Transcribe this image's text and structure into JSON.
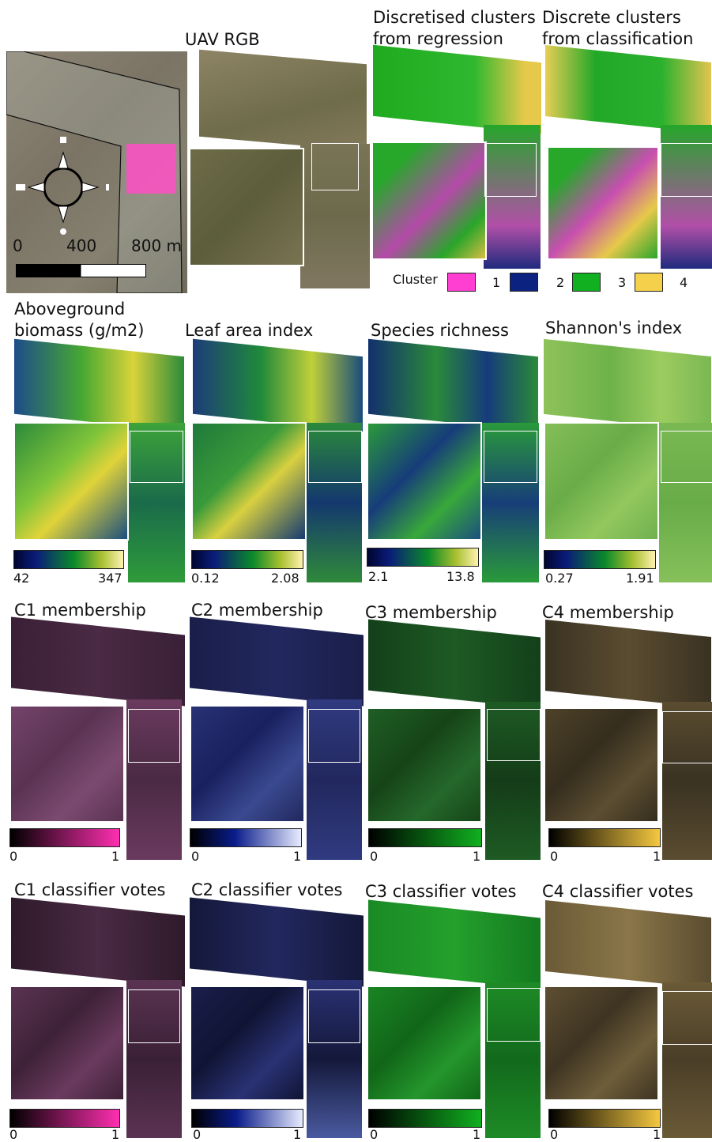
{
  "overview": {
    "scale_labels": [
      "0",
      "400",
      "800 m"
    ]
  },
  "panels": {
    "uav": "UAV RGB",
    "disc_reg": [
      "Discretised clusters",
      "from regression"
    ],
    "disc_cls": [
      "Discrete clusters",
      "from classification"
    ],
    "agb": [
      "Aboveground",
      "biomass (g/m2)"
    ],
    "lai": "Leaf area index",
    "richness": "Species richness",
    "shannon": "Shannon's index",
    "c1m": "C1 membership",
    "c2m": "C2 membership",
    "c3m": "C3 membership",
    "c4m": "C4 membership",
    "c1v": "C1 classifier votes",
    "c2v": "C2 classifier votes",
    "c3v": "C3 classifier votes",
    "c4v": "C4 classifier votes"
  },
  "legend": {
    "title": "Cluster",
    "items": [
      {
        "label": "1",
        "color": "#ff3fd2"
      },
      {
        "label": "2",
        "color": "#0b2280"
      },
      {
        "label": "3",
        "color": "#10b020"
      },
      {
        "label": "4",
        "color": "#f5d04a"
      }
    ]
  },
  "colorbars": {
    "agb": {
      "min": "42",
      "max": "347"
    },
    "lai": {
      "min": "0.12",
      "max": "2.08"
    },
    "richness": {
      "min": "2.1",
      "max": "13.8"
    },
    "shannon": {
      "min": "0.27",
      "max": "1.91"
    },
    "c1m": {
      "min": "0",
      "max": "1"
    },
    "c2m": {
      "min": "0",
      "max": "1"
    },
    "c3m": {
      "min": "0",
      "max": "1"
    },
    "c4m": {
      "min": "0",
      "max": "1"
    },
    "c1v": {
      "min": "0",
      "max": "1"
    },
    "c2v": {
      "min": "0",
      "max": "1"
    },
    "c3v": {
      "min": "0",
      "max": "1"
    },
    "c4v": {
      "min": "0",
      "max": "1"
    }
  },
  "colors": {
    "viridis_like": "#0a1a6e",
    "cluster1": "#ff3fd2",
    "cluster2": "#0b2280",
    "cluster3": "#10b020",
    "cluster4": "#f5d04a"
  }
}
